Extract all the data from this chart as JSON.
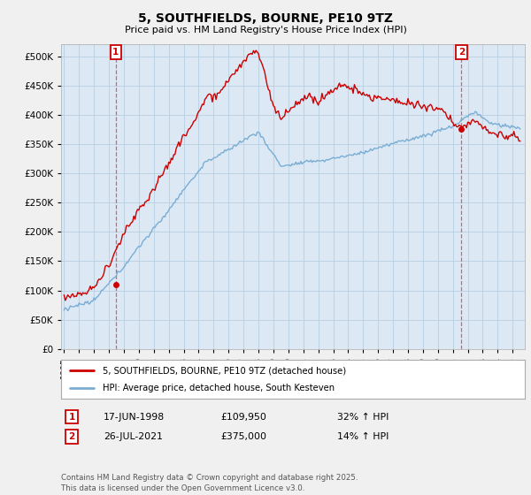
{
  "title": "5, SOUTHFIELDS, BOURNE, PE10 9TZ",
  "subtitle": "Price paid vs. HM Land Registry's House Price Index (HPI)",
  "bg_color": "#f0f0f0",
  "plot_bg_color": "#dce9f5",
  "grid_color": "#b8cfe0",
  "red_color": "#cc0000",
  "blue_color": "#7aadd4",
  "purchase1_year": 1998.46,
  "purchase1_price": 109950,
  "purchase1_label": "1",
  "purchase2_year": 2021.57,
  "purchase2_price": 375000,
  "purchase2_label": "2",
  "legend1": "5, SOUTHFIELDS, BOURNE, PE10 9TZ (detached house)",
  "legend2": "HPI: Average price, detached house, South Kesteven",
  "footer": "Contains HM Land Registry data © Crown copyright and database right 2025.\nThis data is licensed under the Open Government Licence v3.0.",
  "ylim": [
    0,
    520000
  ],
  "yticks": [
    0,
    50000,
    100000,
    150000,
    200000,
    250000,
    300000,
    350000,
    400000,
    450000,
    500000
  ],
  "xmin": 1994.8,
  "xmax": 2025.8
}
